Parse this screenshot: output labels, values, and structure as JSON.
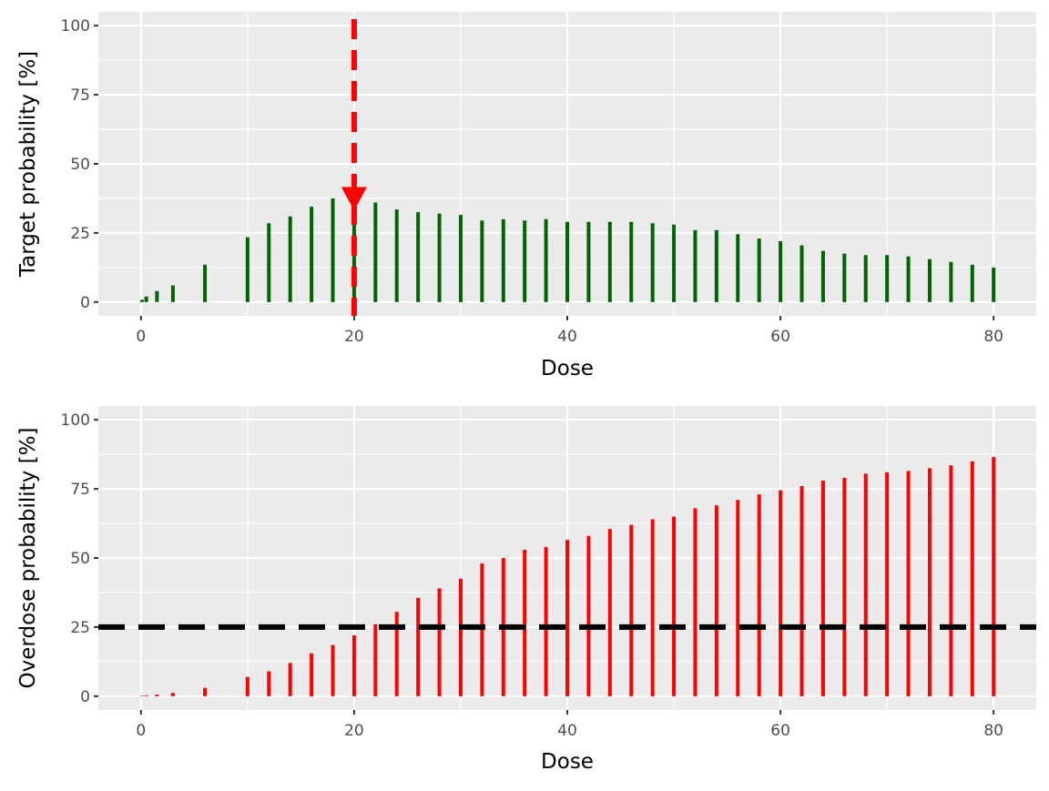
{
  "chart_data": [
    {
      "type": "bar",
      "panel": "target",
      "xlabel": "Dose",
      "ylabel": "Target probability [%]",
      "xlim": [
        -4,
        84
      ],
      "ylim": [
        -5,
        105
      ],
      "x_ticks": [
        0,
        20,
        40,
        60,
        80
      ],
      "x_tick_labels": [
        "0",
        "20",
        "40",
        "60",
        "80"
      ],
      "y_ticks": [
        0,
        25,
        50,
        75,
        100
      ],
      "y_tick_labels": [
        "0",
        "25",
        "50",
        "75",
        "100"
      ],
      "grid": true,
      "bar_color": "#006400",
      "x": [
        0.1,
        0.5,
        1.5,
        3,
        6,
        10,
        12,
        14,
        16,
        18,
        20,
        22,
        24,
        26,
        28,
        30,
        32,
        34,
        36,
        38,
        40,
        42,
        44,
        46,
        48,
        50,
        52,
        54,
        56,
        58,
        60,
        62,
        64,
        66,
        68,
        70,
        72,
        74,
        76,
        78,
        80
      ],
      "values": [
        0.8,
        2,
        4,
        6,
        13.5,
        23.5,
        28.5,
        31,
        34.5,
        37.5,
        34,
        36,
        33.5,
        32.5,
        32,
        31.5,
        29.5,
        30,
        29.5,
        30,
        29,
        29,
        29,
        29,
        28.5,
        28,
        26,
        26,
        24.5,
        23,
        22,
        20.5,
        18.5,
        17.5,
        17,
        17,
        16.5,
        15.5,
        14.5,
        13.5,
        12.5
      ],
      "annotations": {
        "recommended_dose": 20,
        "vline_color": "#ff0000",
        "marker": "down-triangle",
        "marker_y": 37
      }
    },
    {
      "type": "bar",
      "panel": "overdose",
      "xlabel": "Dose",
      "ylabel": "Overdose probability [%]",
      "xlim": [
        -4,
        84
      ],
      "ylim": [
        -5,
        105
      ],
      "x_ticks": [
        0,
        20,
        40,
        60,
        80
      ],
      "x_tick_labels": [
        "0",
        "20",
        "40",
        "60",
        "80"
      ],
      "y_ticks": [
        0,
        25,
        50,
        75,
        100
      ],
      "y_tick_labels": [
        "0",
        "25",
        "50",
        "75",
        "100"
      ],
      "grid": true,
      "bar_color": "#ff0000",
      "x": [
        0.1,
        0.5,
        1.5,
        3,
        6,
        10,
        12,
        14,
        16,
        18,
        20,
        22,
        24,
        26,
        28,
        30,
        32,
        34,
        36,
        38,
        40,
        42,
        44,
        46,
        48,
        50,
        52,
        54,
        56,
        58,
        60,
        62,
        64,
        66,
        68,
        70,
        72,
        74,
        76,
        78,
        80
      ],
      "values": [
        0.2,
        0.3,
        0.6,
        1.2,
        3,
        7,
        9,
        12,
        15.5,
        18.5,
        22,
        26,
        30.5,
        35.5,
        39,
        42.5,
        48,
        50,
        53,
        54,
        56.5,
        58,
        60.5,
        62,
        64,
        65,
        68,
        69,
        71,
        73,
        74.5,
        76,
        78,
        79,
        80.5,
        81,
        81.5,
        82.5,
        83.5,
        85,
        86.5
      ],
      "annotations": {
        "hline_y": 25,
        "hline_color": "#000000"
      }
    }
  ]
}
